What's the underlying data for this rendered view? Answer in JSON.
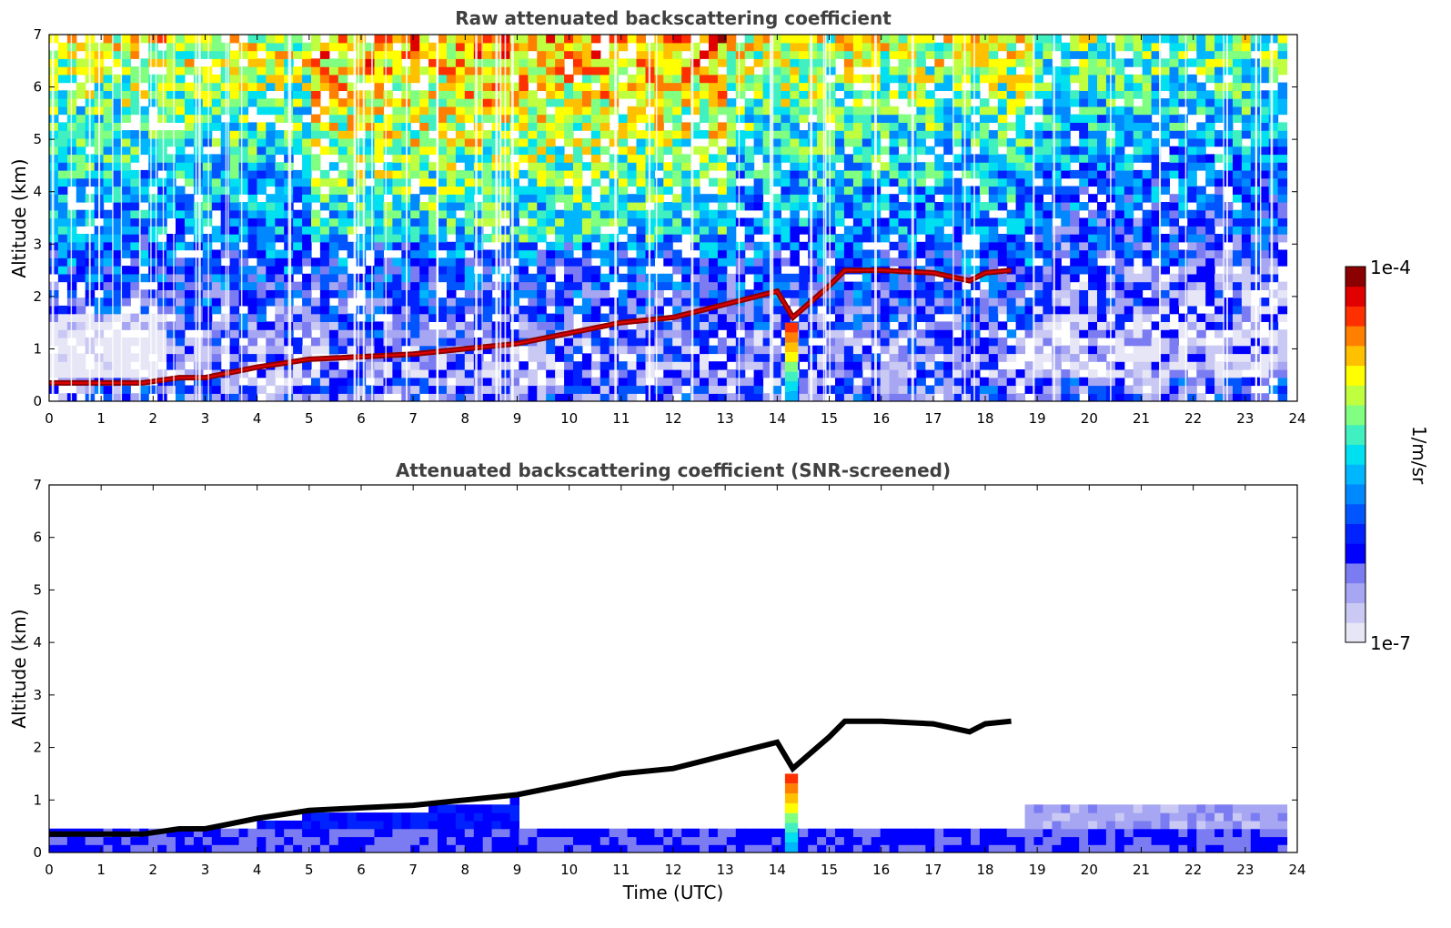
{
  "chart_data": {
    "type": "heatmap",
    "panels": [
      {
        "title": "Raw attenuated backscattering coefficient",
        "xlabel": "",
        "ylabel": "Altitude (km)",
        "xlim": [
          0,
          24
        ],
        "ylim": [
          0,
          7
        ],
        "x_ticks": [
          "0",
          "1",
          "2",
          "3",
          "4",
          "5",
          "6",
          "7",
          "8",
          "9",
          "10",
          "11",
          "12",
          "13",
          "14",
          "15",
          "16",
          "17",
          "18",
          "19",
          "20",
          "21",
          "22",
          "23",
          "24"
        ],
        "y_ticks": [
          "0",
          "1",
          "2",
          "3",
          "4",
          "5",
          "6",
          "7"
        ],
        "data_end_time": 23.8,
        "screened": false
      },
      {
        "title": "Attenuated backscattering coefficient (SNR-screened)",
        "xlabel": "Time (UTC)",
        "ylabel": "Altitude (km)",
        "xlim": [
          0,
          24
        ],
        "ylim": [
          0,
          7
        ],
        "x_ticks": [
          "0",
          "1",
          "2",
          "3",
          "4",
          "5",
          "6",
          "7",
          "8",
          "9",
          "10",
          "11",
          "12",
          "13",
          "14",
          "15",
          "16",
          "17",
          "18",
          "19",
          "20",
          "21",
          "22",
          "23",
          "24"
        ],
        "y_ticks": [
          "0",
          "1",
          "2",
          "3",
          "4",
          "5",
          "6",
          "7"
        ],
        "data_end_time": 23.8,
        "screened": true
      }
    ],
    "boundary_layer_top": {
      "time_utc": [
        0,
        1,
        1.8,
        2.5,
        3,
        3.5,
        4,
        5,
        6,
        7,
        8,
        9,
        10,
        11,
        12,
        13,
        14,
        14.3,
        15,
        15.3,
        16,
        17,
        17.7,
        18,
        18.5
      ],
      "altitude_km": [
        0.35,
        0.35,
        0.35,
        0.45,
        0.45,
        0.55,
        0.65,
        0.8,
        0.85,
        0.9,
        1.0,
        1.1,
        1.3,
        1.5,
        1.6,
        1.85,
        2.1,
        1.6,
        2.2,
        2.5,
        2.5,
        2.45,
        2.3,
        2.45,
        2.5
      ]
    },
    "precipitation_column": {
      "time_start": 14.15,
      "time_end": 14.4,
      "top_km": 1.5
    },
    "colorbar": {
      "min_label": "1e-7",
      "max_label": "1e-4",
      "label": "1/m/sr",
      "scale": "log",
      "colors": [
        "#e6e6f6",
        "#c9c9f4",
        "#a6a6f2",
        "#7c7cf2",
        "#0000ff",
        "#0022ff",
        "#0055ff",
        "#0088ff",
        "#00b7ff",
        "#00e0f0",
        "#40f0c0",
        "#80ff80",
        "#c0ff40",
        "#ffff00",
        "#ffc000",
        "#ff8000",
        "#ff3000",
        "#e00000",
        "#8b0000"
      ]
    }
  }
}
